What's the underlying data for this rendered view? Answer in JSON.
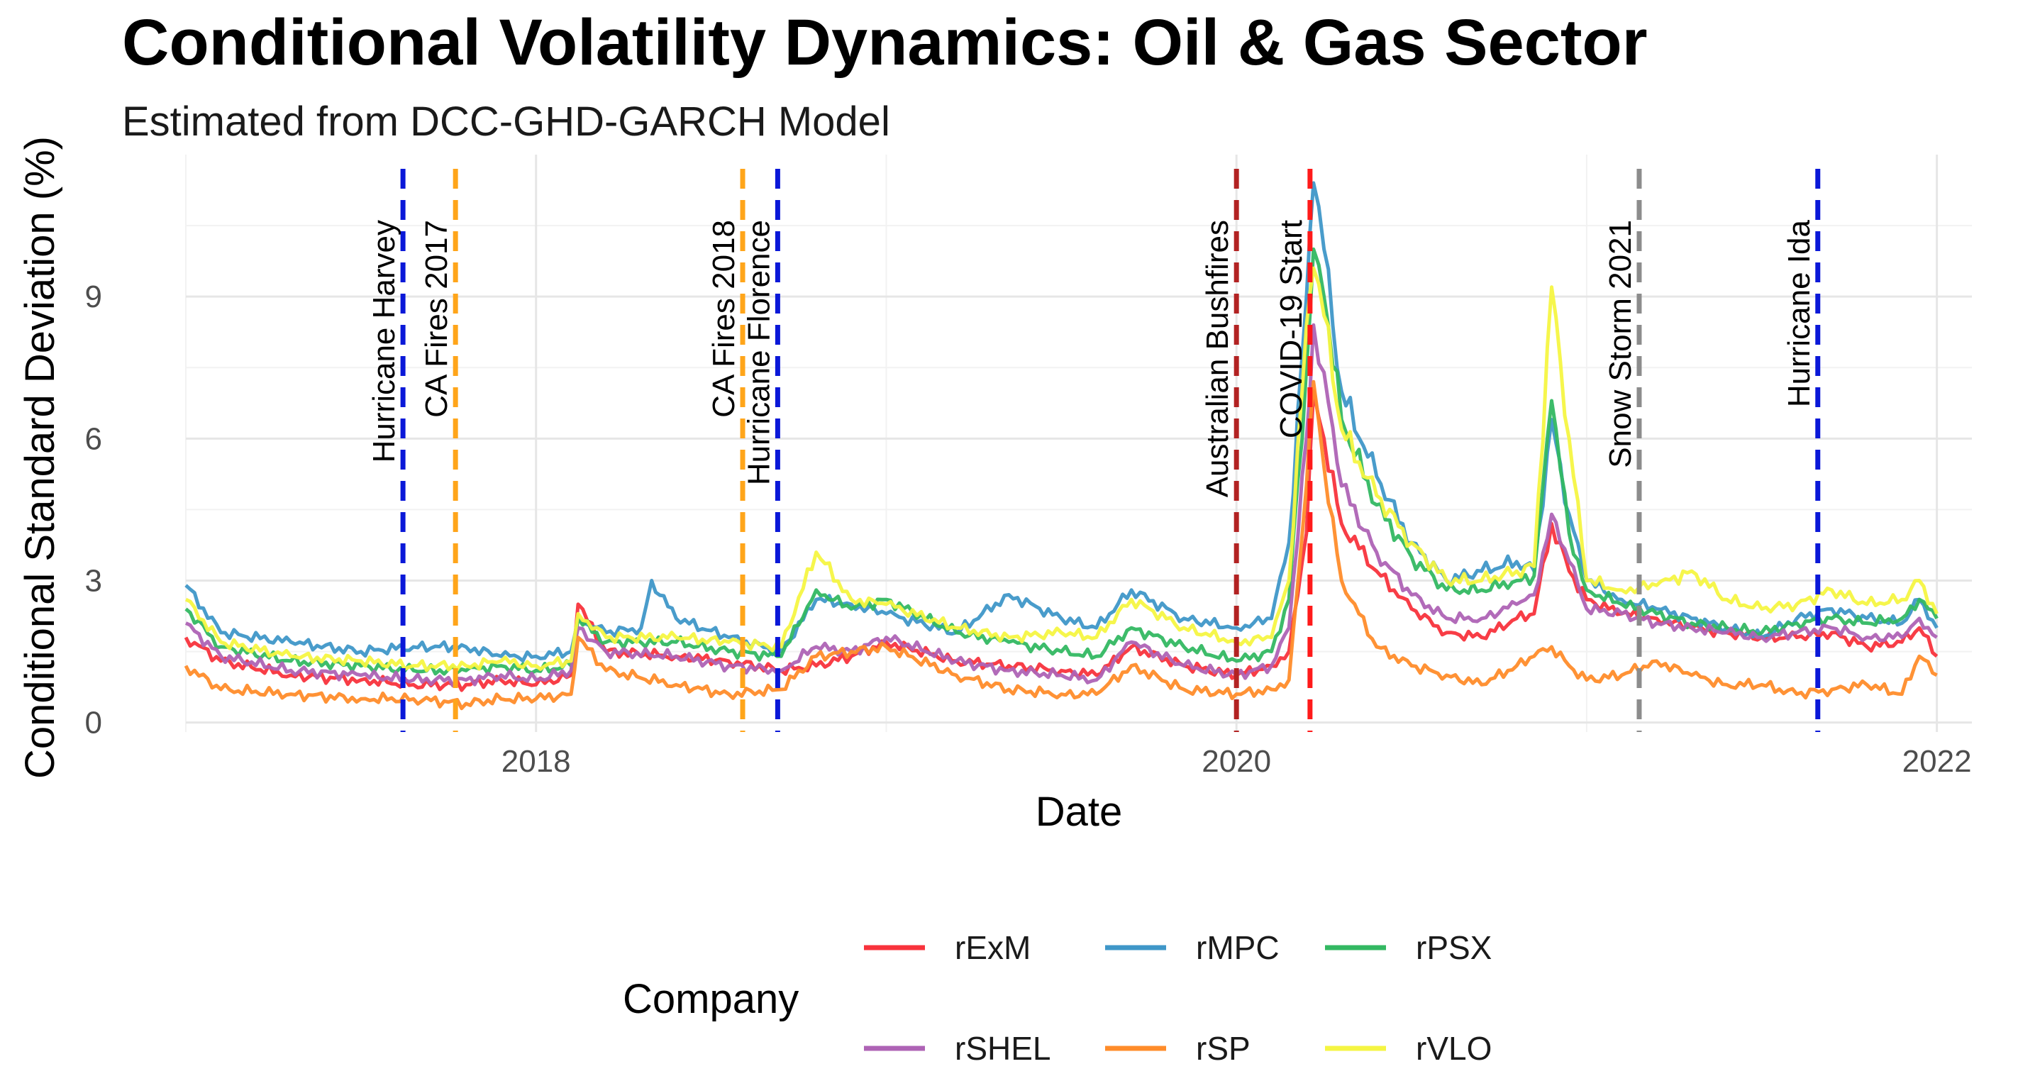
{
  "chart_data": {
    "type": "line",
    "title": "Conditional Volatility Dynamics: Oil & Gas Sector",
    "subtitle": "Estimated from DCC-GHD-GARCH Model",
    "xlabel": "Date",
    "ylabel": "Conditional Standard Deviation (%)",
    "xlim": [
      2017.0,
      2022.1
    ],
    "ylim": [
      -0.2,
      12.0
    ],
    "x_ticks": [
      {
        "value": 2018,
        "label": "2018"
      },
      {
        "value": 2020,
        "label": "2020"
      },
      {
        "value": 2022,
        "label": "2022"
      }
    ],
    "y_ticks": [
      {
        "value": 0,
        "label": "0"
      },
      {
        "value": 3,
        "label": "3"
      },
      {
        "value": 6,
        "label": "6"
      },
      {
        "value": 9,
        "label": "9"
      }
    ],
    "grid": true,
    "legend_title": "Company",
    "legend_position": "bottom",
    "series": [
      {
        "name": "rExM",
        "color": "#F8333C",
        "x": [
          2017.0,
          2017.1,
          2017.3,
          2017.5,
          2017.65,
          2017.8,
          2017.9,
          2018.0,
          2018.1,
          2018.12,
          2018.2,
          2018.4,
          2018.55,
          2018.7,
          2018.8,
          2018.9,
          2019.0,
          2019.2,
          2019.35,
          2019.5,
          2019.6,
          2019.7,
          2019.85,
          2020.0,
          2020.1,
          2020.15,
          2020.2,
          2020.22,
          2020.25,
          2020.3,
          2020.4,
          2020.5,
          2020.6,
          2020.7,
          2020.8,
          2020.85,
          2020.9,
          2020.95,
          2021.0,
          2021.1,
          2021.2,
          2021.3,
          2021.4,
          2021.5,
          2021.6,
          2021.7,
          2021.8,
          2021.9,
          2021.95,
          2022.0
        ],
        "values": [
          1.8,
          1.3,
          1.0,
          0.9,
          0.8,
          0.8,
          0.9,
          0.8,
          1.0,
          2.5,
          1.5,
          1.4,
          1.3,
          1.1,
          1.2,
          1.4,
          1.7,
          1.3,
          1.2,
          1.1,
          1.0,
          1.6,
          1.2,
          1.0,
          1.2,
          1.5,
          4.0,
          7.0,
          6.0,
          4.2,
          3.2,
          2.4,
          1.9,
          1.8,
          2.2,
          2.3,
          4.2,
          3.2,
          2.6,
          2.3,
          2.2,
          2.0,
          1.9,
          1.8,
          1.8,
          1.9,
          1.6,
          1.7,
          2.0,
          1.4
        ]
      },
      {
        "name": "rMPC",
        "color": "#3F97C8",
        "x": [
          2017.0,
          2017.1,
          2017.3,
          2017.5,
          2017.65,
          2017.8,
          2017.9,
          2018.0,
          2018.1,
          2018.12,
          2018.2,
          2018.3,
          2018.33,
          2018.4,
          2018.55,
          2018.7,
          2018.8,
          2018.9,
          2019.0,
          2019.2,
          2019.35,
          2019.5,
          2019.6,
          2019.7,
          2019.85,
          2020.0,
          2020.1,
          2020.15,
          2020.2,
          2020.22,
          2020.25,
          2020.3,
          2020.4,
          2020.5,
          2020.6,
          2020.7,
          2020.8,
          2020.85,
          2020.9,
          2020.95,
          2021.0,
          2021.1,
          2021.2,
          2021.3,
          2021.4,
          2021.5,
          2021.6,
          2021.7,
          2021.8,
          2021.9,
          2021.95,
          2022.0
        ],
        "values": [
          2.9,
          1.9,
          1.7,
          1.5,
          1.6,
          1.6,
          1.4,
          1.4,
          1.5,
          2.2,
          1.9,
          2.0,
          3.0,
          2.2,
          1.8,
          1.5,
          2.6,
          2.5,
          2.3,
          1.9,
          2.7,
          2.2,
          2.0,
          2.8,
          2.2,
          2.0,
          2.2,
          3.8,
          9.0,
          11.4,
          10.0,
          7.0,
          5.2,
          3.8,
          3.0,
          3.2,
          3.4,
          3.2,
          6.4,
          4.4,
          3.0,
          2.6,
          2.4,
          2.2,
          2.0,
          1.8,
          2.2,
          2.4,
          2.2,
          2.1,
          2.6,
          2.0
        ]
      },
      {
        "name": "rPSX",
        "color": "#33B862",
        "x": [
          2017.0,
          2017.1,
          2017.3,
          2017.5,
          2017.65,
          2017.8,
          2017.9,
          2018.0,
          2018.1,
          2018.12,
          2018.2,
          2018.4,
          2018.55,
          2018.7,
          2018.8,
          2018.9,
          2019.0,
          2019.2,
          2019.35,
          2019.5,
          2019.6,
          2019.7,
          2019.85,
          2020.0,
          2020.1,
          2020.15,
          2020.2,
          2020.22,
          2020.25,
          2020.3,
          2020.4,
          2020.5,
          2020.6,
          2020.7,
          2020.8,
          2020.85,
          2020.9,
          2020.95,
          2021.0,
          2021.1,
          2021.2,
          2021.3,
          2021.4,
          2021.5,
          2021.6,
          2021.7,
          2021.8,
          2021.9,
          2021.95,
          2022.0
        ],
        "values": [
          2.4,
          1.6,
          1.3,
          1.2,
          1.1,
          1.1,
          1.2,
          1.1,
          1.2,
          2.2,
          1.7,
          1.7,
          1.5,
          1.4,
          2.8,
          2.4,
          2.6,
          1.9,
          1.7,
          1.5,
          1.4,
          2.0,
          1.6,
          1.3,
          1.5,
          2.6,
          7.5,
          10.0,
          9.0,
          6.4,
          4.6,
          3.5,
          2.8,
          2.8,
          3.0,
          3.1,
          6.8,
          4.0,
          2.8,
          2.5,
          2.3,
          2.1,
          2.0,
          1.9,
          2.1,
          2.2,
          2.1,
          2.2,
          2.6,
          2.2
        ]
      },
      {
        "name": "rSHEL",
        "color": "#AE63B5",
        "x": [
          2017.0,
          2017.1,
          2017.3,
          2017.5,
          2017.65,
          2017.8,
          2017.9,
          2018.0,
          2018.1,
          2018.12,
          2018.2,
          2018.4,
          2018.55,
          2018.7,
          2018.8,
          2018.9,
          2019.0,
          2019.2,
          2019.35,
          2019.5,
          2019.6,
          2019.7,
          2019.85,
          2020.0,
          2020.1,
          2020.15,
          2020.2,
          2020.22,
          2020.25,
          2020.3,
          2020.4,
          2020.5,
          2020.6,
          2020.7,
          2020.8,
          2020.85,
          2020.9,
          2020.95,
          2021.0,
          2021.1,
          2021.2,
          2021.3,
          2021.4,
          2021.5,
          2021.6,
          2021.7,
          2021.8,
          2021.9,
          2021.95,
          2022.0
        ],
        "values": [
          2.1,
          1.4,
          1.1,
          1.0,
          0.9,
          0.9,
          1.0,
          0.9,
          1.1,
          2.0,
          1.5,
          1.4,
          1.2,
          1.1,
          1.6,
          1.5,
          1.8,
          1.3,
          1.1,
          1.0,
          0.9,
          1.7,
          1.2,
          1.0,
          1.2,
          2.0,
          6.0,
          8.4,
          7.4,
          5.0,
          3.6,
          2.7,
          2.2,
          2.2,
          2.5,
          2.7,
          4.4,
          3.4,
          2.4,
          2.3,
          2.1,
          2.0,
          1.9,
          1.8,
          1.9,
          2.0,
          1.8,
          1.8,
          2.2,
          1.8
        ]
      },
      {
        "name": "rSP",
        "color": "#FF8C2A",
        "x": [
          2017.0,
          2017.1,
          2017.3,
          2017.5,
          2017.65,
          2017.8,
          2017.9,
          2018.0,
          2018.1,
          2018.12,
          2018.2,
          2018.4,
          2018.55,
          2018.7,
          2018.8,
          2018.9,
          2019.0,
          2019.2,
          2019.35,
          2019.5,
          2019.6,
          2019.7,
          2019.85,
          2020.0,
          2020.1,
          2020.15,
          2020.2,
          2020.22,
          2020.25,
          2020.3,
          2020.4,
          2020.5,
          2020.6,
          2020.7,
          2020.8,
          2020.85,
          2020.9,
          2020.95,
          2021.0,
          2021.1,
          2021.2,
          2021.3,
          2021.4,
          2021.5,
          2021.6,
          2021.7,
          2021.8,
          2021.9,
          2021.95,
          2022.0
        ],
        "values": [
          1.2,
          0.7,
          0.6,
          0.5,
          0.5,
          0.4,
          0.5,
          0.5,
          0.6,
          1.8,
          1.1,
          0.8,
          0.6,
          0.7,
          1.4,
          1.5,
          1.6,
          1.0,
          0.7,
          0.6,
          0.6,
          1.2,
          0.7,
          0.6,
          0.7,
          0.9,
          5.0,
          7.2,
          5.4,
          3.0,
          1.6,
          1.2,
          1.0,
          0.8,
          1.2,
          1.4,
          1.6,
          1.2,
          0.9,
          1.0,
          1.3,
          1.0,
          0.8,
          0.8,
          0.6,
          0.7,
          0.8,
          0.6,
          1.4,
          1.0
        ]
      },
      {
        "name": "rVLO",
        "color": "#F5F542",
        "x": [
          2017.0,
          2017.1,
          2017.3,
          2017.5,
          2017.65,
          2017.8,
          2017.9,
          2018.0,
          2018.1,
          2018.12,
          2018.2,
          2018.4,
          2018.55,
          2018.7,
          2018.8,
          2018.9,
          2019.0,
          2019.2,
          2019.35,
          2019.5,
          2019.6,
          2019.7,
          2019.85,
          2020.0,
          2020.1,
          2020.15,
          2020.2,
          2020.22,
          2020.25,
          2020.3,
          2020.4,
          2020.5,
          2020.6,
          2020.7,
          2020.8,
          2020.85,
          2020.9,
          2020.95,
          2021.0,
          2021.1,
          2021.2,
          2021.3,
          2021.4,
          2021.5,
          2021.6,
          2021.7,
          2021.8,
          2021.9,
          2021.95,
          2022.0
        ],
        "values": [
          2.6,
          1.7,
          1.4,
          1.3,
          1.2,
          1.2,
          1.3,
          1.2,
          1.3,
          2.3,
          1.8,
          1.8,
          1.7,
          1.6,
          3.6,
          2.6,
          2.5,
          2.0,
          1.8,
          1.9,
          1.8,
          2.6,
          2.0,
          1.7,
          1.8,
          3.0,
          8.4,
          9.6,
          8.6,
          6.2,
          4.8,
          3.8,
          3.0,
          3.0,
          3.2,
          3.3,
          9.2,
          6.0,
          3.0,
          2.8,
          2.9,
          3.2,
          2.6,
          2.4,
          2.5,
          2.8,
          2.5,
          2.6,
          3.0,
          2.3
        ]
      }
    ],
    "events": [
      {
        "label": "Hurricane Harvey",
        "x": 2017.62,
        "color": "#0A18D8"
      },
      {
        "label": "CA Fires 2017",
        "x": 2017.77,
        "color": "#FFA51A"
      },
      {
        "label": "CA Fires 2018",
        "x": 2018.59,
        "color": "#FFA51A"
      },
      {
        "label": "Hurricane Florence",
        "x": 2018.69,
        "color": "#0A18D8"
      },
      {
        "label": "Australian Bushfires",
        "x": 2020.0,
        "color": "#B22222"
      },
      {
        "label": "COVID-19 Start",
        "x": 2020.21,
        "color": "#FF1A1A"
      },
      {
        "label": "Snow Storm 2021",
        "x": 2021.15,
        "color": "#8C8C8C"
      },
      {
        "label": "Hurricane Ida",
        "x": 2021.66,
        "color": "#0A18D8"
      }
    ]
  }
}
